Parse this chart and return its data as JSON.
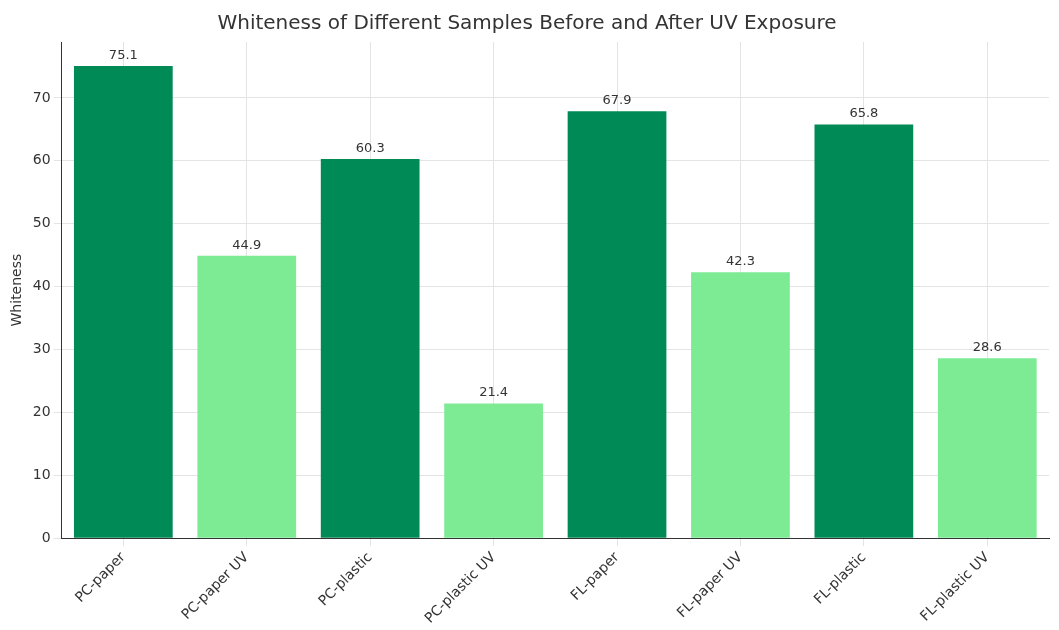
{
  "chart_data": {
    "type": "bar",
    "title": "Whiteness of Different Samples Before and After UV Exposure",
    "ylabel": "Whiteness",
    "categories": [
      "PC-paper",
      "PC-paper UV",
      "PC-plastic",
      "PC-plastic UV",
      "FL-paper",
      "FL-paper UV",
      "FL-plastic",
      "FL-plastic UV"
    ],
    "values": [
      75.1,
      44.9,
      60.3,
      21.4,
      67.9,
      42.3,
      65.8,
      28.6
    ],
    "colors": [
      "#008a55",
      "#7deb94",
      "#008a55",
      "#7deb94",
      "#008a55",
      "#7deb94",
      "#008a55",
      "#7deb94"
    ],
    "ylim": [
      0,
      78.9
    ],
    "yticks": [
      0,
      10,
      20,
      30,
      40,
      50,
      60,
      70
    ],
    "grid": true,
    "data_labels": true
  }
}
